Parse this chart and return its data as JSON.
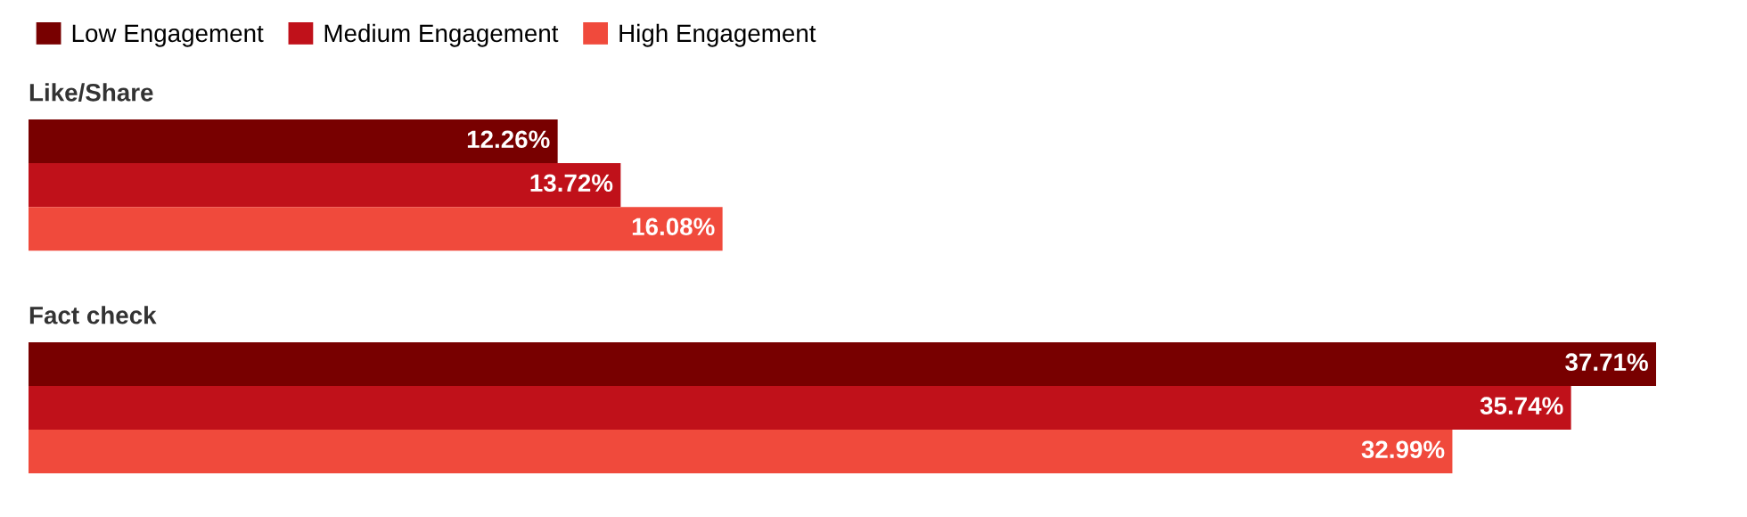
{
  "chart_data": {
    "type": "bar",
    "orientation": "horizontal",
    "legend": "top left",
    "categories": [
      "Like/Share",
      "Fact check"
    ],
    "series": [
      {
        "name": "Low Engagement",
        "color": "#780000",
        "values": [
          12.26,
          37.71
        ],
        "value_labels": [
          "12.26%",
          "37.71%"
        ]
      },
      {
        "name": "Medium Engagement",
        "color": "#c0111a",
        "values": [
          13.72,
          35.74
        ],
        "value_labels": [
          "13.72%",
          "35.74%"
        ]
      },
      {
        "name": "High Engagement",
        "color": "#f04a3c",
        "values": [
          16.08,
          32.99
        ],
        "value_labels": [
          "16.08%",
          "32.99%"
        ]
      }
    ]
  }
}
